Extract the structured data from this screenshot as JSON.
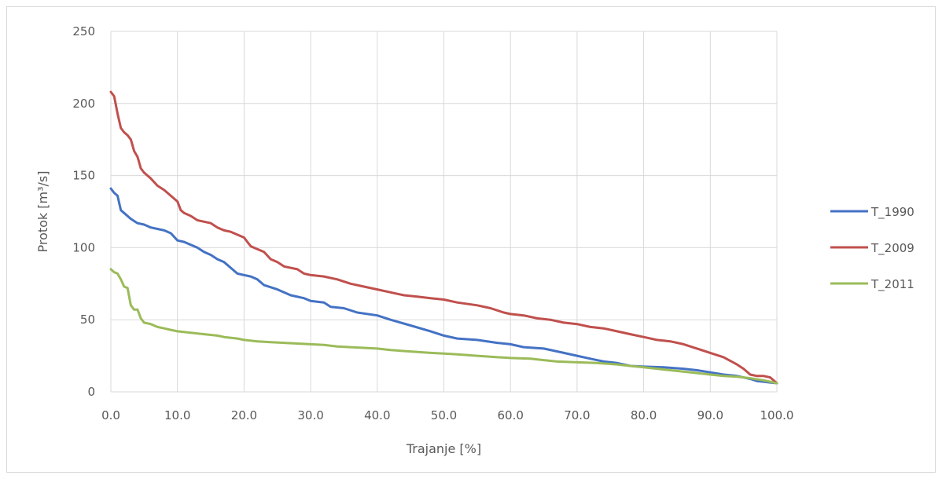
{
  "chart_data": {
    "type": "line",
    "title": "",
    "xlabel": "Trajanje [%]",
    "ylabel": "Protok [m³/s]",
    "xlim": [
      0,
      100
    ],
    "ylim": [
      0,
      250
    ],
    "x_ticks": [
      "0.0",
      "10.0",
      "20.0",
      "30.0",
      "40.0",
      "50.0",
      "60.0",
      "70.0",
      "80.0",
      "90.0",
      "100.0"
    ],
    "y_ticks": [
      "0",
      "50",
      "100",
      "150",
      "200",
      "250"
    ],
    "grid": true,
    "legend_position": "right",
    "series": [
      {
        "name": "T_1990",
        "color": "#4472c4",
        "points": [
          [
            0,
            141
          ],
          [
            0.5,
            138
          ],
          [
            1,
            136
          ],
          [
            1.5,
            126
          ],
          [
            2,
            124
          ],
          [
            3,
            120
          ],
          [
            4,
            117
          ],
          [
            5,
            116
          ],
          [
            6,
            114
          ],
          [
            8,
            112
          ],
          [
            9,
            110
          ],
          [
            10,
            105
          ],
          [
            11,
            104
          ],
          [
            12,
            102
          ],
          [
            13,
            100
          ],
          [
            14,
            97
          ],
          [
            15,
            95
          ],
          [
            16,
            92
          ],
          [
            17,
            90
          ],
          [
            18,
            86
          ],
          [
            19,
            82
          ],
          [
            20,
            81
          ],
          [
            21,
            80
          ],
          [
            22,
            78
          ],
          [
            23,
            74
          ],
          [
            25,
            71
          ],
          [
            27,
            67
          ],
          [
            29,
            65
          ],
          [
            30,
            63
          ],
          [
            32,
            62
          ],
          [
            33,
            59
          ],
          [
            35,
            58
          ],
          [
            37,
            55
          ],
          [
            40,
            53
          ],
          [
            42,
            50
          ],
          [
            45,
            46
          ],
          [
            48,
            42
          ],
          [
            50,
            39
          ],
          [
            52,
            37
          ],
          [
            55,
            36
          ],
          [
            58,
            34
          ],
          [
            60,
            33
          ],
          [
            62,
            31
          ],
          [
            65,
            30
          ],
          [
            68,
            27
          ],
          [
            70,
            25
          ],
          [
            72,
            23
          ],
          [
            74,
            21
          ],
          [
            76,
            20
          ],
          [
            78,
            18
          ],
          [
            80,
            17.5
          ],
          [
            83,
            17
          ],
          [
            86,
            16
          ],
          [
            88,
            15
          ],
          [
            90,
            13.5
          ],
          [
            92,
            12
          ],
          [
            94,
            11
          ],
          [
            96,
            9
          ],
          [
            97,
            7.5
          ],
          [
            98,
            7
          ],
          [
            99,
            6.5
          ],
          [
            100,
            6
          ]
        ]
      },
      {
        "name": "T_2009",
        "color": "#c0504d",
        "points": [
          [
            0,
            208
          ],
          [
            0.5,
            205
          ],
          [
            1,
            193
          ],
          [
            1.5,
            183
          ],
          [
            2,
            180
          ],
          [
            2.5,
            178
          ],
          [
            3,
            175
          ],
          [
            3.5,
            167
          ],
          [
            4,
            163
          ],
          [
            4.5,
            155
          ],
          [
            5,
            152
          ],
          [
            6,
            148
          ],
          [
            7,
            143
          ],
          [
            8,
            140
          ],
          [
            9,
            136
          ],
          [
            10,
            132
          ],
          [
            10.5,
            126
          ],
          [
            11,
            124
          ],
          [
            12,
            122
          ],
          [
            13,
            119
          ],
          [
            15,
            117
          ],
          [
            16,
            114
          ],
          [
            17,
            112
          ],
          [
            18,
            111
          ],
          [
            19,
            109
          ],
          [
            20,
            107
          ],
          [
            20.5,
            104
          ],
          [
            21,
            101
          ],
          [
            22,
            99
          ],
          [
            23,
            97
          ],
          [
            24,
            92
          ],
          [
            25,
            90
          ],
          [
            26,
            87
          ],
          [
            28,
            85
          ],
          [
            29,
            82
          ],
          [
            30,
            81
          ],
          [
            32,
            80
          ],
          [
            34,
            78
          ],
          [
            36,
            75
          ],
          [
            38,
            73
          ],
          [
            40,
            71
          ],
          [
            42,
            69
          ],
          [
            44,
            67
          ],
          [
            46,
            66
          ],
          [
            48,
            65
          ],
          [
            50,
            64
          ],
          [
            52,
            62
          ],
          [
            55,
            60
          ],
          [
            57,
            58
          ],
          [
            59,
            55
          ],
          [
            60,
            54
          ],
          [
            62,
            53
          ],
          [
            64,
            51
          ],
          [
            66,
            50
          ],
          [
            68,
            48
          ],
          [
            70,
            47
          ],
          [
            72,
            45
          ],
          [
            74,
            44
          ],
          [
            76,
            42
          ],
          [
            78,
            40
          ],
          [
            80,
            38
          ],
          [
            82,
            36
          ],
          [
            84,
            35
          ],
          [
            86,
            33
          ],
          [
            88,
            30
          ],
          [
            90,
            27
          ],
          [
            92,
            24
          ],
          [
            94,
            19
          ],
          [
            95,
            16
          ],
          [
            96,
            12
          ],
          [
            97,
            11
          ],
          [
            98,
            11
          ],
          [
            99,
            10
          ],
          [
            100,
            6
          ]
        ]
      },
      {
        "name": "T_2011",
        "color": "#9bbb59",
        "points": [
          [
            0,
            85
          ],
          [
            0.5,
            83
          ],
          [
            1,
            82
          ],
          [
            1.5,
            78
          ],
          [
            2,
            73
          ],
          [
            2.5,
            72
          ],
          [
            3,
            60
          ],
          [
            3.5,
            57
          ],
          [
            4,
            57
          ],
          [
            4.5,
            51
          ],
          [
            5,
            48
          ],
          [
            6,
            47
          ],
          [
            7,
            45
          ],
          [
            8,
            44
          ],
          [
            9,
            43
          ],
          [
            10,
            42
          ],
          [
            12,
            41
          ],
          [
            14,
            40
          ],
          [
            16,
            39
          ],
          [
            17,
            38
          ],
          [
            19,
            37
          ],
          [
            20,
            36
          ],
          [
            22,
            35
          ],
          [
            24,
            34.5
          ],
          [
            26,
            34
          ],
          [
            28,
            33.5
          ],
          [
            30,
            33
          ],
          [
            32,
            32.5
          ],
          [
            34,
            31.5
          ],
          [
            36,
            31
          ],
          [
            38,
            30.5
          ],
          [
            40,
            30
          ],
          [
            42,
            29
          ],
          [
            45,
            28
          ],
          [
            48,
            27
          ],
          [
            50,
            26.5
          ],
          [
            52,
            26
          ],
          [
            55,
            25
          ],
          [
            58,
            24
          ],
          [
            60,
            23.5
          ],
          [
            63,
            23
          ],
          [
            65,
            22
          ],
          [
            67,
            21
          ],
          [
            70,
            20.5
          ],
          [
            73,
            20
          ],
          [
            76,
            19
          ],
          [
            78,
            18
          ],
          [
            80,
            17
          ],
          [
            82,
            16
          ],
          [
            84,
            15
          ],
          [
            86,
            14
          ],
          [
            88,
            13
          ],
          [
            90,
            12
          ],
          [
            92,
            11
          ],
          [
            94,
            10.5
          ],
          [
            96,
            9.5
          ],
          [
            98,
            8
          ],
          [
            99,
            7
          ],
          [
            100,
            6
          ]
        ]
      }
    ]
  }
}
